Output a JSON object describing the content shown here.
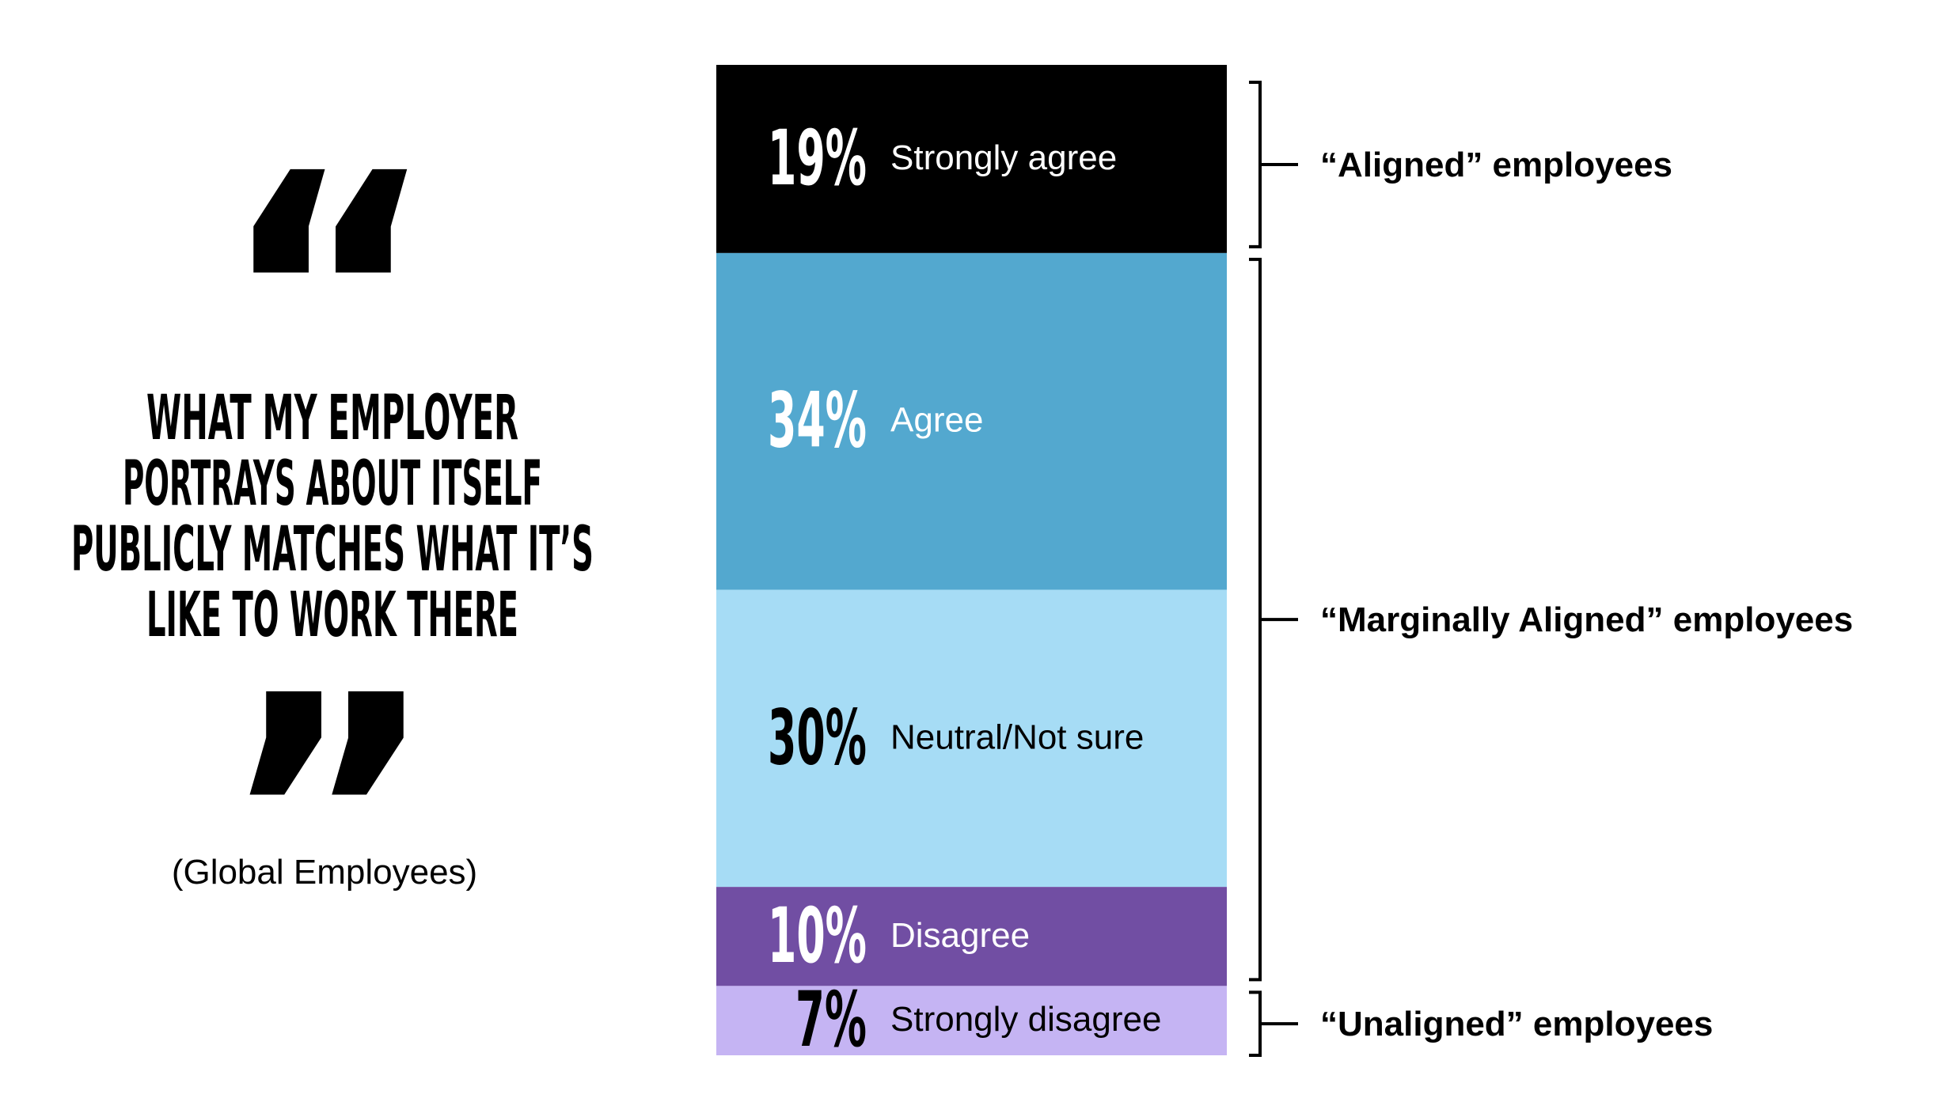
{
  "quote": {
    "open_mark": "“",
    "close_mark": "”",
    "lines": [
      "WHAT MY EMPLOYER",
      "PORTRAYS ABOUT ITSELF",
      "PUBLICLY MATCHES WHAT IT’S",
      "LIKE TO WORK THERE"
    ],
    "subtitle": "(Global Employees)"
  },
  "chart_data": {
    "type": "bar",
    "orientation": "stacked-vertical",
    "unit": "%",
    "series": [
      {
        "value": 19,
        "pct_label": "19%",
        "label": "Strongly agree",
        "color": "#000000",
        "text_color": "#ffffff"
      },
      {
        "value": 34,
        "pct_label": "34%",
        "label": "Agree",
        "color": "#53a8cf",
        "text_color": "#ffffff"
      },
      {
        "value": 30,
        "pct_label": "30%",
        "label": "Neutral/Not sure",
        "color": "#a6dcf5",
        "text_color": "#000000"
      },
      {
        "value": 10,
        "pct_label": "10%",
        "label": "Disagree",
        "color": "#714ea3",
        "text_color": "#ffffff"
      },
      {
        "value": 7,
        "pct_label": "7%",
        "label": "Strongly disagree",
        "color": "#c5b4f3",
        "text_color": "#000000"
      }
    ],
    "groups": [
      {
        "label": "“Aligned” employees",
        "start": 0,
        "end": 0
      },
      {
        "label": "“Marginally Aligned” employees",
        "start": 1,
        "end": 3
      },
      {
        "label": "“Unaligned” employees",
        "start": 4,
        "end": 4
      }
    ]
  }
}
